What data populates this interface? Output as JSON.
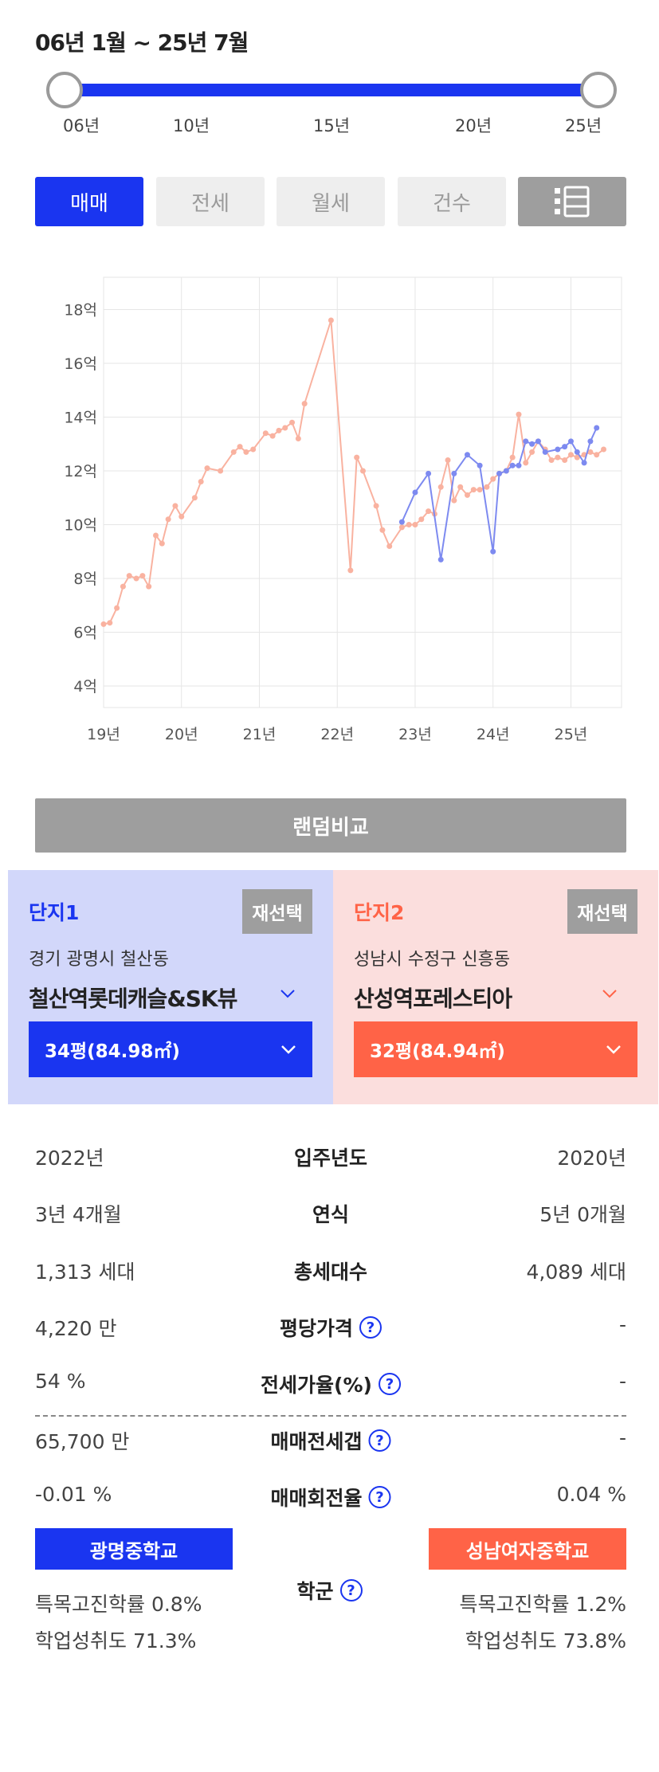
{
  "period": {
    "title": "06년 1월 ~ 25년 7월"
  },
  "slider": {
    "ticks": [
      "06년",
      "10년",
      "15년",
      "20년",
      "25년"
    ]
  },
  "tabs": [
    "매매",
    "전세",
    "월세",
    "건수"
  ],
  "list_icon": "list-icon",
  "chart_data": {
    "type": "line",
    "x_ticks": [
      "19년",
      "20년",
      "21년",
      "22년",
      "23년",
      "24년",
      "25년"
    ],
    "y_ticks": [
      "4억",
      "6억",
      "8억",
      "10억",
      "12억",
      "14억",
      "16억",
      "18억"
    ],
    "ylim": [
      3.2,
      19.2
    ],
    "xlim": [
      2019.0,
      2025.65
    ],
    "grid": true,
    "series": [
      {
        "color": "#f9b2a0",
        "values": [
          [
            2019.0,
            6.3
          ],
          [
            2019.08,
            6.35
          ],
          [
            2019.17,
            6.9
          ],
          [
            2019.25,
            7.7
          ],
          [
            2019.33,
            8.1
          ],
          [
            2019.42,
            8.0
          ],
          [
            2019.5,
            8.1
          ],
          [
            2019.58,
            7.7
          ],
          [
            2019.67,
            9.6
          ],
          [
            2019.75,
            9.3
          ],
          [
            2019.83,
            10.2
          ],
          [
            2019.92,
            10.7
          ],
          [
            2020.0,
            10.3
          ],
          [
            2020.17,
            11.0
          ],
          [
            2020.25,
            11.6
          ],
          [
            2020.33,
            12.1
          ],
          [
            2020.5,
            12.0
          ],
          [
            2020.67,
            12.7
          ],
          [
            2020.75,
            12.9
          ],
          [
            2020.83,
            12.7
          ],
          [
            2020.92,
            12.8
          ],
          [
            2021.08,
            13.4
          ],
          [
            2021.17,
            13.3
          ],
          [
            2021.25,
            13.5
          ],
          [
            2021.33,
            13.6
          ],
          [
            2021.42,
            13.8
          ],
          [
            2021.5,
            13.2
          ],
          [
            2021.58,
            14.5
          ],
          [
            2021.92,
            17.6
          ],
          [
            2022.17,
            8.3
          ],
          [
            2022.25,
            12.5
          ],
          [
            2022.33,
            12.0
          ],
          [
            2022.5,
            10.7
          ],
          [
            2022.58,
            9.8
          ],
          [
            2022.67,
            9.2
          ],
          [
            2022.83,
            9.9
          ],
          [
            2022.92,
            10.0
          ],
          [
            2023.0,
            10.0
          ],
          [
            2023.08,
            10.2
          ],
          [
            2023.17,
            10.5
          ],
          [
            2023.25,
            10.4
          ],
          [
            2023.33,
            11.4
          ],
          [
            2023.42,
            12.4
          ],
          [
            2023.5,
            10.9
          ],
          [
            2023.58,
            11.4
          ],
          [
            2023.67,
            11.1
          ],
          [
            2023.75,
            11.3
          ],
          [
            2023.83,
            11.3
          ],
          [
            2023.92,
            11.4
          ],
          [
            2024.0,
            11.7
          ],
          [
            2024.08,
            11.9
          ],
          [
            2024.17,
            12.0
          ],
          [
            2024.25,
            12.5
          ],
          [
            2024.33,
            14.1
          ],
          [
            2024.42,
            12.3
          ],
          [
            2024.5,
            12.7
          ],
          [
            2024.58,
            13.1
          ],
          [
            2024.67,
            12.8
          ],
          [
            2024.75,
            12.4
          ],
          [
            2024.83,
            12.5
          ],
          [
            2024.92,
            12.4
          ],
          [
            2025.0,
            12.6
          ],
          [
            2025.08,
            12.5
          ],
          [
            2025.17,
            12.6
          ],
          [
            2025.25,
            12.7
          ],
          [
            2025.33,
            12.6
          ],
          [
            2025.42,
            12.8
          ]
        ]
      },
      {
        "color": "#7d8af0",
        "values": [
          [
            2022.83,
            10.1
          ],
          [
            2023.0,
            11.2
          ],
          [
            2023.17,
            11.9
          ],
          [
            2023.33,
            8.7
          ],
          [
            2023.5,
            11.9
          ],
          [
            2023.67,
            12.6
          ],
          [
            2023.83,
            12.2
          ],
          [
            2024.0,
            9.0
          ],
          [
            2024.08,
            11.9
          ],
          [
            2024.17,
            12.0
          ],
          [
            2024.25,
            12.2
          ],
          [
            2024.33,
            12.2
          ],
          [
            2024.42,
            13.1
          ],
          [
            2024.5,
            13.0
          ],
          [
            2024.58,
            13.1
          ],
          [
            2024.67,
            12.7
          ],
          [
            2024.83,
            12.8
          ],
          [
            2024.92,
            12.9
          ],
          [
            2025.0,
            13.1
          ],
          [
            2025.08,
            12.7
          ],
          [
            2025.17,
            12.3
          ],
          [
            2025.25,
            13.1
          ],
          [
            2025.33,
            13.6
          ]
        ]
      }
    ]
  },
  "random_compare_label": "랜덤비교",
  "complex1": {
    "label": "단지1",
    "reselect": "재선택",
    "address": "경기 광명시 철산동",
    "name": "철산역롯데캐슬&SK뷰",
    "size": "34평(84.98㎡)"
  },
  "complex2": {
    "label": "단지2",
    "reselect": "재선택",
    "address": "성남시 수정구 신흥동",
    "name": "산성역포레스티아",
    "size": "32평(84.94㎡)"
  },
  "compare_rows": [
    {
      "left": "2022년",
      "label": "입주년도",
      "right": "2020년",
      "help": false
    },
    {
      "left": "3년 4개월",
      "label": "연식",
      "right": "5년 0개월",
      "help": false
    },
    {
      "left": "1,313 세대",
      "label": "총세대수",
      "right": "4,089 세대",
      "help": false
    },
    {
      "left": "4,220 만",
      "label": "평당가격",
      "right": "-",
      "help": true
    },
    {
      "left": "54 %",
      "label": "전세가율(%)",
      "right": "-",
      "help": true
    },
    {
      "left": "65,700 만",
      "label": "매매전세갭",
      "right": "-",
      "help": true
    },
    {
      "left": "-0.01 %",
      "label": "매매회전율",
      "right": "0.04 %",
      "help": true
    }
  ],
  "help_mark": "?",
  "school": {
    "label": "학군",
    "left": {
      "name": "광명중학교",
      "special_rate": "특목고진학률 0.8%",
      "achievement": "학업성취도 71.3%"
    },
    "right": {
      "name": "성남여자중학교",
      "special_rate": "특목고진학률 1.2%",
      "achievement": "학업성취도 73.8%"
    }
  }
}
